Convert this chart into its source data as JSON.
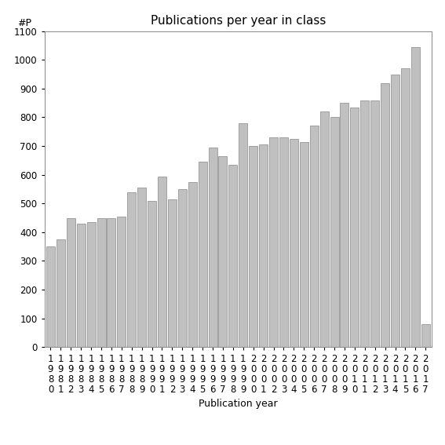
{
  "title": "Publications per year in class",
  "xlabel": "Publication year",
  "ylabel": "#P",
  "years": [
    "1980",
    "1981",
    "1982",
    "1983",
    "1984",
    "1985",
    "1986",
    "1987",
    "1988",
    "1989",
    "1990",
    "1991",
    "1992",
    "1993",
    "1994",
    "1995",
    "1996",
    "1997",
    "1998",
    "1999",
    "2000",
    "2001",
    "2002",
    "2003",
    "2004",
    "2005",
    "2006",
    "2007",
    "2008",
    "2009",
    "2010",
    "2011",
    "2012",
    "2013",
    "2014",
    "2015",
    "2016",
    "2017"
  ],
  "values": [
    350,
    375,
    450,
    430,
    435,
    450,
    450,
    455,
    540,
    555,
    510,
    595,
    515,
    550,
    575,
    645,
    695,
    665,
    635,
    780,
    700,
    705,
    730,
    730,
    725,
    715,
    770,
    820,
    800,
    850,
    835,
    860,
    860,
    920,
    950,
    970,
    1045,
    80
  ],
  "bar_color": "#c0c0c0",
  "bar_edge_color": "#888888",
  "ylim": [
    0,
    1100
  ],
  "yticks": [
    0,
    100,
    200,
    300,
    400,
    500,
    600,
    700,
    800,
    900,
    1000,
    1100
  ],
  "background_color": "#ffffff",
  "title_fontsize": 11,
  "label_fontsize": 9,
  "tick_fontsize": 8.5
}
